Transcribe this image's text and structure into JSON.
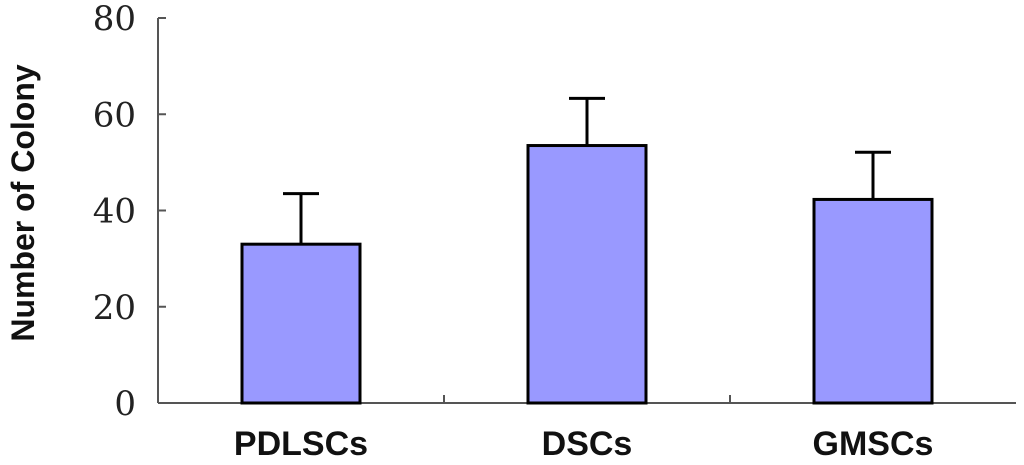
{
  "chart_data": {
    "type": "bar",
    "categories": [
      "PDLSCs",
      "DSCs",
      "GMSCs"
    ],
    "values": [
      33,
      53.5,
      42.3
    ],
    "error": [
      10.5,
      9.8,
      9.8
    ],
    "title": "",
    "xlabel": "",
    "ylabel": "Number of Colony",
    "ylim": [
      0,
      80
    ],
    "yticks": [
      0,
      20,
      40,
      60,
      80
    ],
    "grid": false,
    "bar_color": "#9999ff",
    "bar_stroke": "#000000"
  }
}
